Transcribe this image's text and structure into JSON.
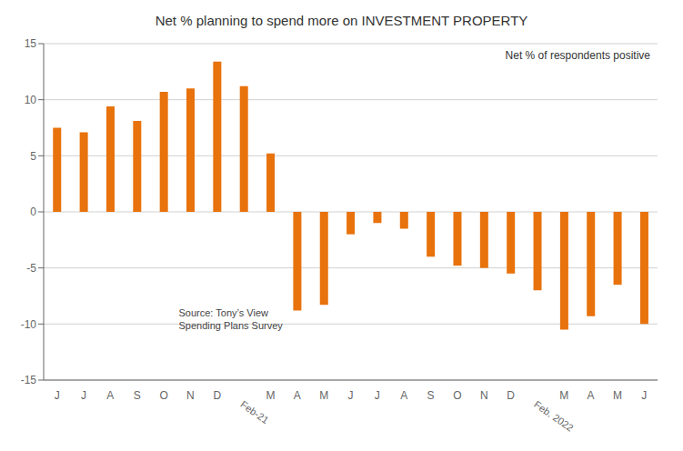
{
  "chart_data": {
    "type": "bar",
    "title": "Net % planning to spend more on INVESTMENT PROPERTY",
    "annotation": "Net % of respondents positive",
    "source_text": "Source: Tony’s View\nSpending Plans Survey",
    "categories": [
      "J",
      "J",
      "A",
      "S",
      "O",
      "N",
      "D",
      "Feb-21",
      "M",
      "A",
      "M",
      "J",
      "J",
      "A",
      "S",
      "O",
      "N",
      "D",
      "Feb. 2022",
      "M",
      "A",
      "M",
      "J"
    ],
    "values": [
      7.5,
      7.1,
      9.4,
      8.1,
      10.7,
      11.0,
      13.4,
      11.2,
      5.2,
      -8.8,
      -8.3,
      -2.0,
      -1.0,
      -1.5,
      -4.0,
      -4.8,
      -5.0,
      -5.5,
      -7.0,
      -10.5,
      -9.3,
      -6.5,
      -10.0
    ],
    "color": "#E8720C",
    "ylim": [
      -15,
      15
    ],
    "yticks": [
      -15,
      -10,
      -5,
      0,
      5,
      10,
      15
    ],
    "grid": true
  }
}
